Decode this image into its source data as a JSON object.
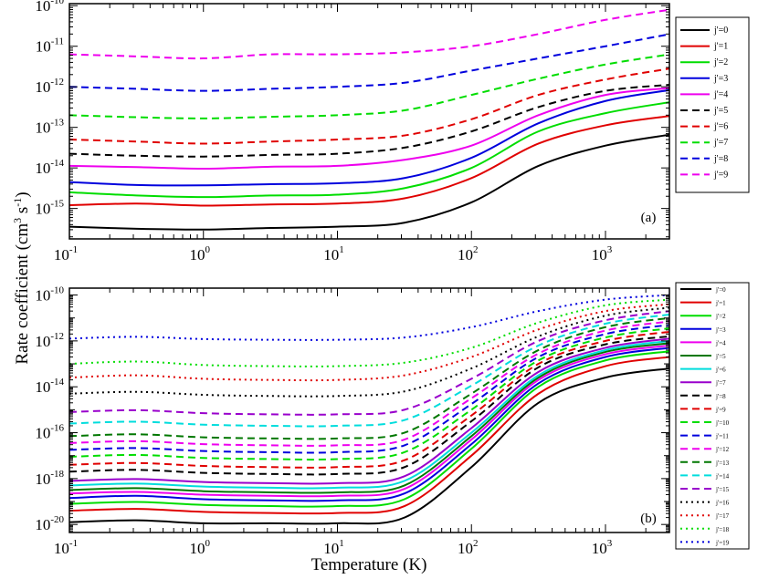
{
  "figure": {
    "ylabel": "Rate coefficient (cm³ s⁻¹)",
    "ylabel_base": "Rate coefficient (cm",
    "ylabel_sup1": "3",
    "ylabel_mid": " s",
    "ylabel_sup2": "-1",
    "ylabel_end": ")",
    "xlabel": "Temperature (K)"
  },
  "chart_data": [
    {
      "type": "line",
      "panel": "(a)",
      "xscale": "log",
      "yscale": "log",
      "xlim": [
        0.1,
        3000
      ],
      "ylim_log10": [
        -15.75,
        -9.95
      ],
      "x_ticks": [
        {
          "base": "10",
          "exp": "-1"
        },
        {
          "base": "10",
          "exp": "0"
        },
        {
          "base": "10",
          "exp": "1"
        },
        {
          "base": "10",
          "exp": "2"
        },
        {
          "base": "10",
          "exp": "3"
        }
      ],
      "y_ticks": [
        {
          "base": "10",
          "exp": "-15",
          "v": -15
        },
        {
          "base": "10",
          "exp": "-14",
          "v": -14
        },
        {
          "base": "10",
          "exp": "-13",
          "v": -13
        },
        {
          "base": "10",
          "exp": "-12",
          "v": -12
        },
        {
          "base": "10",
          "exp": "-11",
          "v": -11
        },
        {
          "base": "10",
          "exp": "-10",
          "v": -10
        }
      ],
      "x_log10": [
        -1,
        -0.5,
        0,
        0.5,
        1,
        1.5,
        2,
        2.5,
        3,
        3.48
      ],
      "series": [
        {
          "name": "j'=0",
          "color": "#000000",
          "dash": "solid",
          "log10_values": [
            -15.45,
            -15.5,
            -15.52,
            -15.48,
            -15.45,
            -15.35,
            -14.85,
            -13.95,
            -13.45,
            -13.18
          ]
        },
        {
          "name": "j'=1",
          "color": "#e00000",
          "dash": "solid",
          "log10_values": [
            -14.92,
            -14.88,
            -14.93,
            -14.9,
            -14.88,
            -14.75,
            -14.25,
            -13.4,
            -12.95,
            -12.72
          ]
        },
        {
          "name": "j'=2",
          "color": "#00dd00",
          "dash": "solid",
          "log10_values": [
            -14.6,
            -14.68,
            -14.72,
            -14.68,
            -14.66,
            -14.5,
            -14.0,
            -13.1,
            -12.65,
            -12.38
          ]
        },
        {
          "name": "j'=3",
          "color": "#0000dd",
          "dash": "solid",
          "log10_values": [
            -14.35,
            -14.42,
            -14.43,
            -14.4,
            -14.38,
            -14.25,
            -13.75,
            -12.9,
            -12.35,
            -12.08
          ]
        },
        {
          "name": "j'=4",
          "color": "#ee00ee",
          "dash": "solid",
          "log10_values": [
            -13.95,
            -13.98,
            -14.02,
            -13.97,
            -13.95,
            -13.8,
            -13.45,
            -12.7,
            -12.2,
            -12.03
          ]
        },
        {
          "name": "j'=5",
          "color": "#000000",
          "dash": "dash",
          "log10_values": [
            -13.65,
            -13.7,
            -13.72,
            -13.68,
            -13.65,
            -13.5,
            -13.1,
            -12.5,
            -12.1,
            -11.95
          ]
        },
        {
          "name": "j'=6",
          "color": "#e00000",
          "dash": "dash",
          "log10_values": [
            -13.3,
            -13.35,
            -13.4,
            -13.35,
            -13.3,
            -13.2,
            -12.8,
            -12.2,
            -11.82,
            -11.55
          ]
        },
        {
          "name": "j'=7",
          "color": "#00dd00",
          "dash": "dash",
          "log10_values": [
            -12.7,
            -12.75,
            -12.78,
            -12.74,
            -12.7,
            -12.58,
            -12.2,
            -11.8,
            -11.45,
            -11.2
          ]
        },
        {
          "name": "j'=8",
          "color": "#0000dd",
          "dash": "dash",
          "log10_values": [
            -12.0,
            -12.05,
            -12.1,
            -12.05,
            -12.0,
            -11.9,
            -11.6,
            -11.3,
            -11.0,
            -10.7
          ]
        },
        {
          "name": "j'=9",
          "color": "#ee00ee",
          "dash": "dash",
          "log10_values": [
            -11.2,
            -11.25,
            -11.3,
            -11.2,
            -11.2,
            -11.15,
            -11.0,
            -10.7,
            -10.35,
            -10.1
          ]
        }
      ]
    },
    {
      "type": "line",
      "panel": "(b)",
      "xscale": "log",
      "yscale": "log",
      "xlim": [
        0.1,
        3000
      ],
      "ylim_log10": [
        -20.35,
        -9.7
      ],
      "x_ticks": [
        {
          "base": "10",
          "exp": "-1"
        },
        {
          "base": "10",
          "exp": "0"
        },
        {
          "base": "10",
          "exp": "1"
        },
        {
          "base": "10",
          "exp": "2"
        },
        {
          "base": "10",
          "exp": "3"
        }
      ],
      "y_ticks": [
        {
          "base": "10",
          "exp": "-20",
          "v": -20
        },
        {
          "base": "10",
          "exp": "-18",
          "v": -18
        },
        {
          "base": "10",
          "exp": "-16",
          "v": -16
        },
        {
          "base": "10",
          "exp": "-14",
          "v": -14
        },
        {
          "base": "10",
          "exp": "-12",
          "v": -12
        },
        {
          "base": "10",
          "exp": "-10",
          "v": -10
        }
      ],
      "x_log10": [
        -1,
        -0.5,
        0,
        0.5,
        1,
        1.5,
        2,
        2.5,
        3,
        3.48
      ],
      "series": [
        {
          "name": "j'=0",
          "color": "#000000",
          "dash": "solid",
          "log10_values": [
            -19.9,
            -19.82,
            -19.95,
            -19.95,
            -19.95,
            -19.7,
            -17.5,
            -14.7,
            -13.6,
            -13.2
          ]
        },
        {
          "name": "j'=1",
          "color": "#e00000",
          "dash": "solid",
          "log10_values": [
            -19.4,
            -19.32,
            -19.45,
            -19.5,
            -19.5,
            -19.2,
            -17.0,
            -14.3,
            -13.1,
            -12.7
          ]
        },
        {
          "name": "j'=2",
          "color": "#00dd00",
          "dash": "solid",
          "log10_values": [
            -19.1,
            -19.02,
            -19.15,
            -19.2,
            -19.2,
            -18.9,
            -16.7,
            -14.0,
            -12.85,
            -12.45
          ]
        },
        {
          "name": "j'=3",
          "color": "#0000dd",
          "dash": "solid",
          "log10_values": [
            -18.85,
            -18.75,
            -18.9,
            -18.95,
            -18.95,
            -18.65,
            -16.5,
            -13.85,
            -12.7,
            -12.3
          ]
        },
        {
          "name": "j'=4",
          "color": "#ee00ee",
          "dash": "solid",
          "log10_values": [
            -18.65,
            -18.58,
            -18.7,
            -18.75,
            -18.75,
            -18.45,
            -16.3,
            -13.7,
            -12.58,
            -12.2
          ]
        },
        {
          "name": "j'=5",
          "color": "#007700",
          "dash": "solid",
          "log10_values": [
            -18.5,
            -18.42,
            -18.55,
            -18.6,
            -18.6,
            -18.3,
            -16.15,
            -13.6,
            -12.48,
            -12.1
          ]
        },
        {
          "name": "j'=6",
          "color": "#00dddd",
          "dash": "solid",
          "log10_values": [
            -18.3,
            -18.22,
            -18.35,
            -18.4,
            -18.4,
            -18.1,
            -16.0,
            -13.5,
            -12.4,
            -12.0
          ]
        },
        {
          "name": "j'=7",
          "color": "#9900cc",
          "dash": "solid",
          "log10_values": [
            -18.1,
            -18.02,
            -18.15,
            -18.2,
            -18.2,
            -17.9,
            -15.8,
            -13.35,
            -12.3,
            -11.9
          ]
        },
        {
          "name": "j'=8",
          "color": "#000000",
          "dash": "dash",
          "log10_values": [
            -17.7,
            -17.62,
            -17.75,
            -17.8,
            -17.8,
            -17.5,
            -15.5,
            -13.15,
            -12.15,
            -11.8
          ]
        },
        {
          "name": "j'=9",
          "color": "#e00000",
          "dash": "dash",
          "log10_values": [
            -17.4,
            -17.32,
            -17.45,
            -17.5,
            -17.5,
            -17.2,
            -15.25,
            -13.0,
            -12.0,
            -11.6
          ]
        },
        {
          "name": "j'=10",
          "color": "#00dd00",
          "dash": "dash",
          "log10_values": [
            -17.05,
            -16.97,
            -17.1,
            -17.15,
            -17.15,
            -16.85,
            -15.0,
            -12.85,
            -11.85,
            -11.45
          ]
        },
        {
          "name": "j'=11",
          "color": "#0000dd",
          "dash": "dash",
          "log10_values": [
            -16.75,
            -16.67,
            -16.8,
            -16.85,
            -16.85,
            -16.55,
            -14.75,
            -12.7,
            -11.7,
            -11.3
          ]
        },
        {
          "name": "j'=12",
          "color": "#ee00ee",
          "dash": "dash",
          "log10_values": [
            -16.45,
            -16.37,
            -16.5,
            -16.55,
            -16.55,
            -16.3,
            -14.5,
            -12.55,
            -11.55,
            -11.15
          ]
        },
        {
          "name": "j'=13",
          "color": "#007700",
          "dash": "dash",
          "log10_values": [
            -16.15,
            -16.07,
            -16.2,
            -16.25,
            -16.25,
            -16.0,
            -14.3,
            -12.4,
            -11.4,
            -11.0
          ]
        },
        {
          "name": "j'=14",
          "color": "#00dddd",
          "dash": "dash",
          "log10_values": [
            -15.6,
            -15.52,
            -15.65,
            -15.7,
            -15.7,
            -15.45,
            -13.95,
            -12.2,
            -11.25,
            -10.85
          ]
        },
        {
          "name": "j'=15",
          "color": "#9900cc",
          "dash": "dash",
          "log10_values": [
            -15.1,
            -15.02,
            -15.15,
            -15.2,
            -15.2,
            -15.0,
            -13.65,
            -12.0,
            -11.1,
            -10.7
          ]
        },
        {
          "name": "j'=16",
          "color": "#000000",
          "dash": "dot",
          "log10_values": [
            -14.3,
            -14.22,
            -14.35,
            -14.4,
            -14.4,
            -14.2,
            -13.2,
            -11.8,
            -10.9,
            -10.55
          ]
        },
        {
          "name": "j'=17",
          "color": "#e00000",
          "dash": "dot",
          "log10_values": [
            -13.6,
            -13.5,
            -13.65,
            -13.7,
            -13.7,
            -13.5,
            -12.7,
            -11.5,
            -10.7,
            -10.4
          ]
        },
        {
          "name": "j'=18",
          "color": "#00dd00",
          "dash": "dot",
          "log10_values": [
            -13.0,
            -12.9,
            -13.05,
            -13.1,
            -13.1,
            -12.95,
            -12.3,
            -11.2,
            -10.45,
            -10.2
          ]
        },
        {
          "name": "j'=19",
          "color": "#0000dd",
          "dash": "dot",
          "log10_values": [
            -11.9,
            -11.82,
            -11.92,
            -11.95,
            -11.95,
            -11.85,
            -11.4,
            -10.7,
            -10.2,
            -10.0
          ]
        }
      ]
    }
  ]
}
